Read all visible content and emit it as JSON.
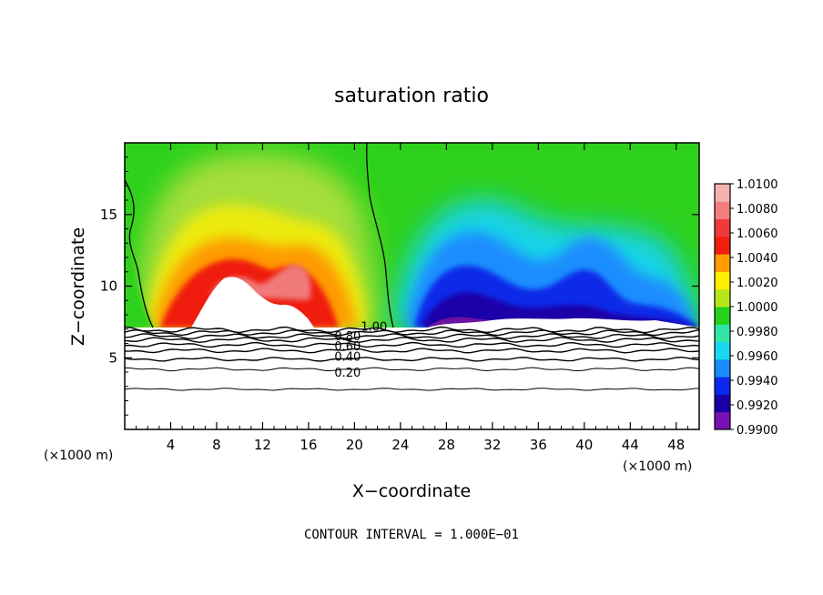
{
  "chart_data": {
    "type": "heatmap",
    "title": "saturation ratio",
    "xlabel": "X−coordinate",
    "ylabel": "Z−coordinate",
    "x_unit_left": "(×1000 m)",
    "x_unit_right": "(×1000 m)",
    "footer": "CONTOUR INTERVAL = 1.000E−01",
    "xlim": [
      0,
      50
    ],
    "ylim": [
      0,
      20
    ],
    "x_ticks": [
      4,
      8,
      12,
      16,
      20,
      24,
      28,
      32,
      36,
      40,
      44,
      48
    ],
    "x_tick_labels": [
      "4",
      "8",
      "12",
      "16",
      "20",
      "24",
      "28",
      "32",
      "36",
      "40",
      "44",
      "48"
    ],
    "y_ticks": [
      5,
      10,
      15
    ],
    "y_tick_labels": [
      "5",
      "10",
      "15"
    ],
    "colorbar": {
      "levels": [
        0.99,
        0.992,
        0.994,
        0.996,
        0.998,
        1.0,
        1.002,
        1.004,
        1.006,
        1.008,
        1.01
      ],
      "tick_labels": [
        "0.9900",
        "0.9920",
        "0.9940",
        "0.9960",
        "0.9980",
        "1.0000",
        "1.0020",
        "1.0040",
        "1.0060",
        "1.0080",
        "1.0100"
      ],
      "colors": [
        "#7a11b5",
        "#1a00a8",
        "#0d28ee",
        "#1a8cff",
        "#19d7ef",
        "#33e6a5",
        "#24d21b",
        "#b5e61a",
        "#ffee00",
        "#ff9d00",
        "#f21f0f",
        "#ee3a3a",
        "#f37d7d",
        "#f5b0b0"
      ]
    },
    "contour_interval": 0.1,
    "contour_labels": [
      {
        "level": 0.2,
        "text": "0.20"
      },
      {
        "level": 0.4,
        "text": "0.40"
      },
      {
        "level": 0.6,
        "text": "0.60"
      },
      {
        "level": 0.8,
        "text": "0.80"
      },
      {
        "level": 1.0,
        "text": "1.00"
      }
    ],
    "subsaturated_top_z": 7.1,
    "field_summary": [
      {
        "region": "supersaturated plume",
        "x_range": [
          2.5,
          23.5
        ],
        "z_range": [
          7.1,
          20
        ],
        "max_value": 1.01
      },
      {
        "region": "subsaturated band",
        "x_range": [
          24,
          50
        ],
        "z_range": [
          7.1,
          15
        ],
        "min_value": 0.99
      }
    ]
  }
}
